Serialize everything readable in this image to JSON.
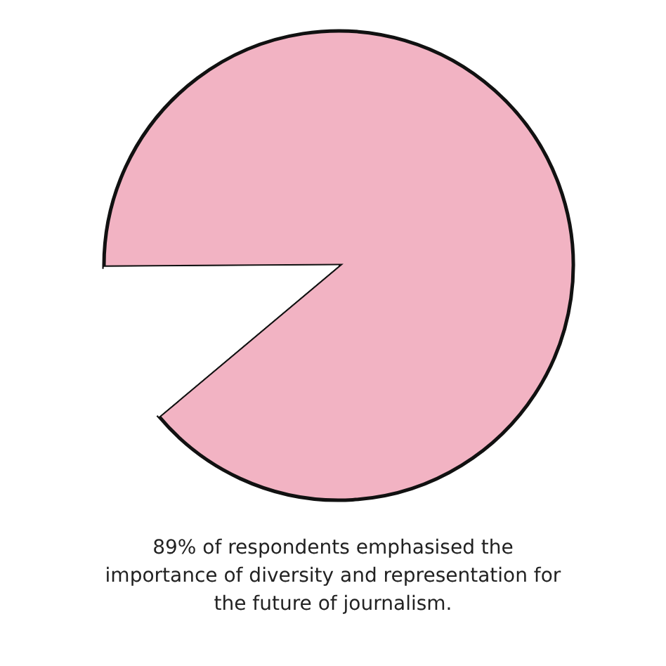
{
  "chart_data": {
    "type": "pie",
    "categories": [
      null,
      null
    ],
    "values": [
      89,
      11
    ],
    "colors": [
      "#f2b3c3",
      "#ffffff"
    ],
    "annotations": [
      "89% of respondents emphasised the importance of diversity and representation for the future of journalism."
    ]
  }
}
